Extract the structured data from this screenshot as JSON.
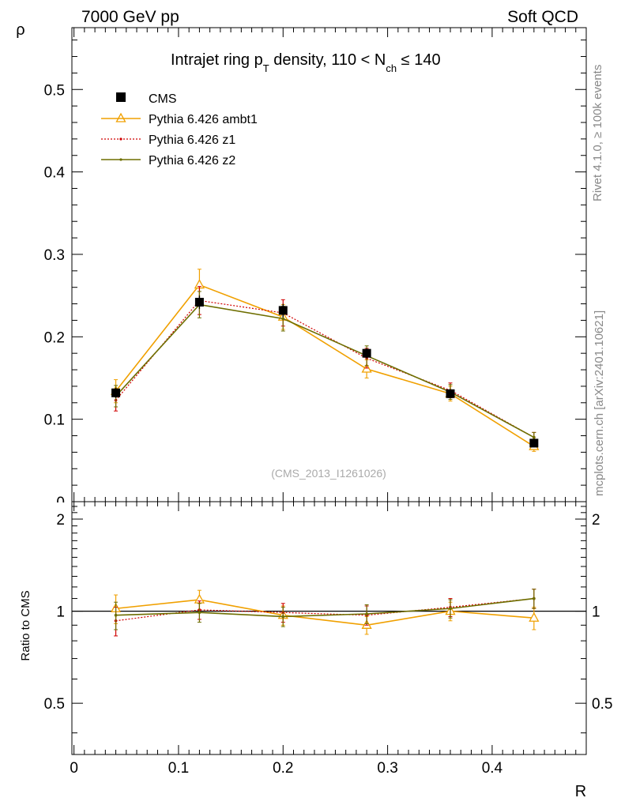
{
  "header": {
    "left": "7000 GeV pp",
    "right": "Soft QCD"
  },
  "side_text": {
    "rivet": "Rivet 4.1.0, ≥ 100k events",
    "mcplots": "mcplots.cern.ch [arXiv:2401.10621]"
  },
  "watermark": "(CMS_2013_I1261026)",
  "title": {
    "main": "Intrajet ring p",
    "sub_t": "T",
    "mid": " density, 110 < N",
    "sub_ch": "ch",
    "end": " ≤ 140"
  },
  "colors": {
    "cms": "#000000",
    "ambt1": "#f0a000",
    "z1": "#d00000",
    "z2": "#6e6e00"
  },
  "chart_data": {
    "type": "line",
    "xlabel": "R",
    "ylabel": "ρ",
    "ratio_ylabel": "Ratio to CMS",
    "xlim": [
      -0.002,
      0.49
    ],
    "ylim": [
      0,
      0.575
    ],
    "ratio_ylim": [
      0.34,
      2.28
    ],
    "x_ticks": [
      "0",
      "0.1",
      "0.2",
      "0.3",
      "0.4"
    ],
    "y_ticks": [
      "0.1",
      "0.2",
      "0.3",
      "0.4",
      "0.5"
    ],
    "ratio_ticks": [
      "0.5",
      "1",
      "2"
    ],
    "x": [
      0.04,
      0.12,
      0.2,
      0.28,
      0.36,
      0.44
    ],
    "series": [
      {
        "name": "CMS",
        "style": "square",
        "values": [
          0.132,
          0.242,
          0.232,
          0.18,
          0.131,
          0.071
        ],
        "errors": [
          0.006,
          0.008,
          0.008,
          0.006,
          0.005,
          0.004
        ]
      },
      {
        "name": "Pythia 6.426 ambt1",
        "style": "triangle",
        "values": [
          0.134,
          0.263,
          0.224,
          0.161,
          0.131,
          0.067
        ],
        "errors": [
          0.014,
          0.019,
          0.015,
          0.011,
          0.009,
          0.006
        ]
      },
      {
        "name": "Pythia 6.426 z1",
        "style": "dotted",
        "values": [
          0.123,
          0.244,
          0.229,
          0.174,
          0.135,
          0.078
        ],
        "errors": [
          0.013,
          0.017,
          0.016,
          0.012,
          0.009,
          0.006
        ]
      },
      {
        "name": "Pythia 6.426 z2",
        "style": "solid-dot",
        "values": [
          0.128,
          0.239,
          0.222,
          0.177,
          0.133,
          0.078
        ],
        "errors": [
          0.013,
          0.016,
          0.015,
          0.012,
          0.009,
          0.006
        ]
      }
    ],
    "ratio_series": [
      {
        "name": "Pythia 6.426 ambt1",
        "values": [
          1.02,
          1.09,
          0.97,
          0.9,
          1.0,
          0.95
        ],
        "errors": [
          0.11,
          0.08,
          0.07,
          0.06,
          0.07,
          0.08
        ]
      },
      {
        "name": "Pythia 6.426 z1",
        "values": [
          0.93,
          1.01,
          0.99,
          0.97,
          1.03,
          1.1
        ],
        "errors": [
          0.1,
          0.07,
          0.07,
          0.07,
          0.07,
          0.08
        ]
      },
      {
        "name": "Pythia 6.426 z2",
        "values": [
          0.97,
          0.99,
          0.96,
          0.98,
          1.02,
          1.1
        ],
        "errors": [
          0.1,
          0.07,
          0.07,
          0.07,
          0.07,
          0.08
        ]
      }
    ]
  }
}
